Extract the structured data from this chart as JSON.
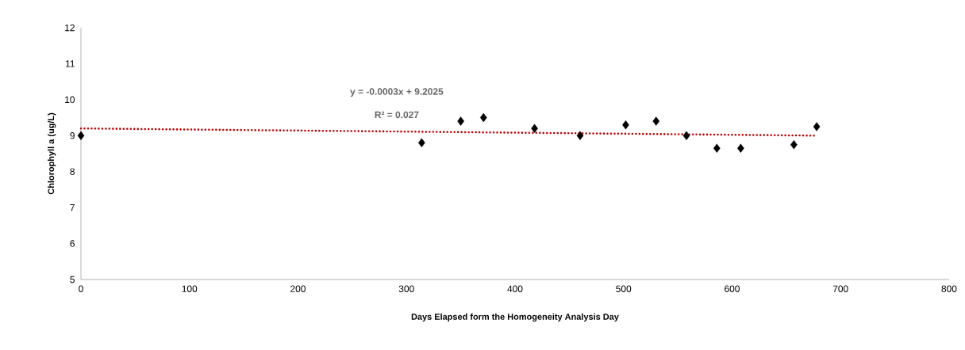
{
  "chart_data": {
    "type": "scatter",
    "xlabel": "Days Elapsed form the Homogeneity Analysis Day",
    "ylabel": "Chlorophyll a (ug/L)",
    "annotations": [
      "y = -0.0003x + 9.2025",
      "R² = 0.027"
    ],
    "series": [
      {
        "color": "#000000",
        "marker": "diamond",
        "x": [
          0,
          314,
          350,
          371,
          418,
          460,
          502,
          530,
          558,
          586,
          608,
          657,
          678
        ],
        "values": [
          9.0,
          8.8,
          9.4,
          9.5,
          9.2,
          9.0,
          9.3,
          9.4,
          9.0,
          8.65,
          8.65,
          8.75,
          9.25
        ]
      },
      {
        "type": "line",
        "color": "#c00000",
        "marker": "none",
        "line_style": "dotted",
        "x": [
          0,
          678
        ],
        "values": [
          9.2,
          9.0
        ]
      }
    ],
    "xlim": [
      0,
      800
    ],
    "xticks": [
      0,
      100,
      200,
      300,
      400,
      500,
      600,
      700,
      800
    ],
    "ylim": [
      5,
      12
    ],
    "yticks": [
      5,
      6,
      7,
      8,
      9,
      10,
      11,
      12
    ],
    "grid": false
  }
}
